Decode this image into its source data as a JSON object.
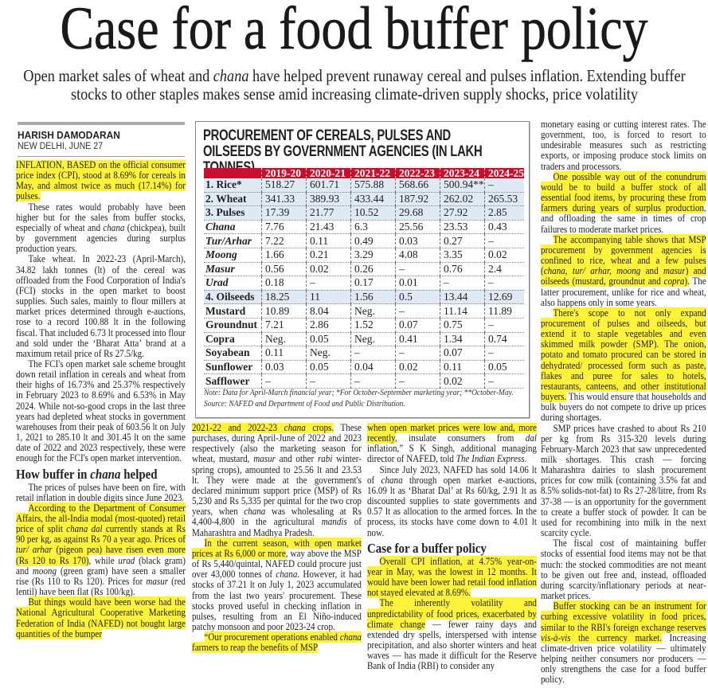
{
  "headline": "Case for a food buffer policy",
  "subhead": {
    "runs": [
      {
        "t": "Open market sales of wheat and "
      },
      {
        "t": "chana",
        "i": true
      },
      {
        "t": " have helped prevent runaway cereal and pulses inflation. Extending buffer stocks to other staples makes sense amid increasing climate-driven supply shocks, price volatility"
      }
    ]
  },
  "byline": {
    "author": "HARISH DAMODARAN",
    "dateline": "NEW DELHI, JUNE 27"
  },
  "columns": [
    [
      {
        "cont": true,
        "runs": [
          {
            "t": "INFLATION, BASED on the official consumer price index (CPI), stood at 8.69% for cereals in May, and almost twice as much (17.14%) for pulses.",
            "hl": true
          }
        ]
      },
      {
        "runs": [
          {
            "t": "These rates would probably have been higher but for the sales from buffer stocks, especially of wheat and "
          },
          {
            "t": "chana",
            "i": true
          },
          {
            "t": " (chickpea), built by government agencies during surplus production years."
          }
        ]
      },
      {
        "runs": [
          {
            "t": "Take wheat. In 2022-23 (April-March), 34.82 lakh tonnes (lt) of the cereal was offloaded from the Food Corporation of India's (FCI) stocks in the open market to boost supplies. Such sales, mainly to flour millers at market prices determined through e-auctions, rose to a record 100.88 lt in the following fiscal. That included 6.73 lt processed into flour and sold under the ‘Bharat Atta’ brand at a maximum retail price of Rs 27.5/kg."
          }
        ]
      },
      {
        "runs": [
          {
            "t": "The FCI's open market sale scheme brought down retail inflation in cereals and wheat from their highs of 16.73% and 25.37% respectively in February 2023 to 8.69% and 6.53% in May 2024. While not-so-good crops in the last three years had depleted wheat stocks in government warehouses from their peak of 603.56 lt on July 1, 2021 to 285.10 lt and 301.45 lt on the same date of 2022 and 2023 respectively, these were enough for the FCI's open market intervention."
          }
        ]
      },
      {
        "heading": true,
        "runs": [
          {
            "t": "How buffer in "
          },
          {
            "t": "chana",
            "i": true
          },
          {
            "t": " helped"
          }
        ]
      },
      {
        "runs": [
          {
            "t": "The prices of pulses have been on fire, with retail inflation in double digits since June 2023."
          }
        ]
      },
      {
        "runs": [
          {
            "t": "According to the Department of Consumer Affairs, the all-India modal (most-quoted) retail price of split ",
            "hl": true
          },
          {
            "t": "chana dal",
            "i": true,
            "hl": true
          },
          {
            "t": " currently stands at Rs 90 per kg, as against Rs 70 a year ago. Prices of ",
            "hl": true
          },
          {
            "t": "tur/ arhar",
            "i": true,
            "hl": true
          },
          {
            "t": " (pigeon pea) have risen even more (Rs 120 to Rs 170)",
            "hl": true
          },
          {
            "t": ", while "
          },
          {
            "t": "urad",
            "i": true
          },
          {
            "t": " (black gram) and "
          },
          {
            "t": "moong",
            "i": true
          },
          {
            "t": " (green gram) have seen a smaller rise (Rs 110 to Rs 120). Prices for "
          },
          {
            "t": "masur",
            "i": true
          },
          {
            "t": " (red lentil) have been flat (Rs 100/kg)."
          }
        ]
      },
      {
        "runs": [
          {
            "t": "But things would have been worse had the National Agricultural Cooperative Marketing Federation of India (NAFED) not bought large quantities of the bumper",
            "hl": true
          }
        ]
      }
    ],
    [
      {
        "cont": true,
        "runs": [
          {
            "t": "2021-22 and 2022-23 ",
            "hl": true
          },
          {
            "t": "chana",
            "i": true,
            "hl": true
          },
          {
            "t": " crops.",
            "hl": true
          },
          {
            "t": " These purchases, during April-June of 2022 and 2023 respectively (also the marketing season for wheat, mustard, "
          },
          {
            "t": "masur",
            "i": true
          },
          {
            "t": " and other "
          },
          {
            "t": "rabi",
            "i": true
          },
          {
            "t": " winter-spring crops), amounted to 25.56 lt and 23.53 lt. They were made at the government's declared minimum support price (MSP) of Rs 5,230 and Rs 5,335 per quintal for the two crop years, when "
          },
          {
            "t": "chana",
            "i": true
          },
          {
            "t": " was wholesaling at Rs 4,400-4,800 in the agricultural "
          },
          {
            "t": "mandis",
            "i": true
          },
          {
            "t": " of Maharashtra and Madhya Pradesh."
          }
        ]
      },
      {
        "runs": [
          {
            "t": "In the current season, with open market prices at Rs 6,000 or more",
            "hl": true
          },
          {
            "t": ", way above the MSP of Rs 5,440/quintal, NAFED could procure just over 43,000 tonnes of "
          },
          {
            "t": "chana",
            "i": true
          },
          {
            "t": ". However, it had stocks of 37.21 lt on July 1, 2023 accumulated from the last two years' procurement. These stocks proved useful in checking inflation in pulses, resulting from an El Niño-induced patchy monsoon and poor 2023-24 crop."
          }
        ]
      },
      {
        "runs": [
          {
            "t": "“Our procurement operations enabled ",
            "hl": true
          },
          {
            "t": "chana",
            "i": true,
            "hl": true
          },
          {
            "t": " farmers to reap the benefits of MSP",
            "hl": true
          }
        ]
      }
    ],
    [
      {
        "cont": true,
        "runs": [
          {
            "t": "when open market prices were low and, more recently",
            "hl": true
          },
          {
            "t": ", insulate consumers from "
          },
          {
            "t": "dal",
            "i": true
          },
          {
            "t": " inflation,” S K Singh, additional managing director of NAFED, told "
          },
          {
            "t": "The Indian Express",
            "i": true
          },
          {
            "t": "."
          }
        ]
      },
      {
        "runs": [
          {
            "t": "Since July 2023, NAFED has sold 14.06 lt of "
          },
          {
            "t": "chana",
            "i": true
          },
          {
            "t": " through open market e-auctions, 16.09 lt as ‘Bharat Dal’ at Rs 60/kg, 2.91 lt as discounted supplies to state governments and 0.57 lt as allocation to the armed forces. In the process, its stocks have come down to 4.01 lt now."
          }
        ]
      },
      {
        "heading": true,
        "runs": [
          {
            "t": "Case for a buffer policy"
          }
        ]
      },
      {
        "runs": [
          {
            "t": "Overall CPI inflation, at 4.75% year-on-year in May, was the lowest in 12 months. It would have been lower had retail food inflation not stayed elevated at 8.69%.",
            "hl": true
          }
        ]
      },
      {
        "runs": [
          {
            "t": "The inherently volatility and unpredictability of food prices, exacerbated by climate change",
            "hl": true
          },
          {
            "t": " — fewer rainy days and extended dry spells, interspersed with intense precipitation, and also shorter winters and heat waves — has made it difficult for the Reserve Bank of India (RBI) to consider any"
          }
        ]
      }
    ],
    [
      {
        "cont": true,
        "runs": [
          {
            "t": "monetary easing or cutting interest rates. The government, too, is forced to resort to undesirable measures such as restricting exports, or imposing produce stock limits on traders and processors."
          }
        ]
      },
      {
        "runs": [
          {
            "t": "One possible way out of the conundrum would be to build a buffer stock of all essential food items, by procuring these from farmers during years of surplus production",
            "hl": true
          },
          {
            "t": ", and offloading the same in times of crop failures to moderate market prices."
          }
        ]
      },
      {
        "runs": [
          {
            "t": "The accompanying table shows that MSP procurement by government agencies is confined to rice, wheat and a few pulses (",
            "hl": true
          },
          {
            "t": "chana, tur/ arhar, moong",
            "i": true,
            "hl": true
          },
          {
            "t": " and ",
            "hl": true
          },
          {
            "t": "masur",
            "i": true,
            "hl": true
          },
          {
            "t": ") and oilseeds (mustard, groundnut and ",
            "hl": true
          },
          {
            "t": "copra",
            "i": true,
            "hl": true
          },
          {
            "t": ").",
            "hl": true
          },
          {
            "t": " The latter procurement, unlike for rice and wheat, also happens only in some years."
          }
        ]
      },
      {
        "runs": [
          {
            "t": "There's scope to not only expand procurement of pulses and oilseeds, but extend it to staple vegetables and even skimmed milk powder (SMP). The onion, potato and tomato procured can be stored in dehydrated/ processed form such as paste, flakes and puree for sales to hotels, restaurants, canteens, and other institutional buyers.",
            "hl": true
          },
          {
            "t": " This would ensure that households and bulk buyers do not compete to drive up prices during shortages."
          }
        ]
      },
      {
        "runs": [
          {
            "t": "SMP prices have crashed to about Rs 210 per kg from Rs 315-320 levels during February-March 2023 that saw unprecedented milk shortages. This crash — forcing Maharashtra dairies to slash procurement prices for cow milk (containing 3.5% fat and 8.5% solids-not-fat) to Rs 27-28/litre, from Rs 37-38 — is an opportunity for the government to create a buffer stock of powder. It can be used for recombining into milk in the next scarcity cycle."
          }
        ]
      },
      {
        "runs": [
          {
            "t": "The fiscal cost of maintaining buffer stocks of essential food items may not be that much: the stocked commodities are not meant to be given out free and, instead, offloaded during scarcity/inflationary periods at near-market prices."
          }
        ]
      },
      {
        "runs": [
          {
            "t": "Buffer stocking can be an instrument for curbing excessive volatility in food prices, similar to the RBI's foreign exchange reserves ",
            "hl": true
          },
          {
            "t": "vis-à-vis",
            "i": true,
            "hl": true
          },
          {
            "t": " the currency market.",
            "hl": true
          },
          {
            "t": " Increasing climate-driven price volatility — ultimately helping neither consumers nor producers — only strengthens the case for a food buffer policy."
          }
        ]
      }
    ]
  ],
  "table": {
    "title": "PROCUREMENT OF CEREALS, PULSES AND OILSEEDS BY GOVERNMENT AGENCIES (IN LAKH TONNES)",
    "columns": [
      "",
      "2019-20",
      "2020-21",
      "2021-22",
      "2022-23",
      "2023-24",
      "2024-25"
    ],
    "rows": [
      {
        "label": "1. Rice*",
        "group": true,
        "values": [
          "518.27",
          "601.71",
          "575.88",
          "568.66",
          "500.94**",
          "–"
        ]
      },
      {
        "label": "2. Wheat",
        "group": true,
        "values": [
          "341.33",
          "389.93",
          "433.44",
          "187.92",
          "262.02",
          "265.53"
        ]
      },
      {
        "label": "3. Pulses",
        "group": true,
        "values": [
          "17.39",
          "21.77",
          "10.52",
          "29.68",
          "27.92",
          "2.85"
        ]
      },
      {
        "label": "Chana",
        "italic": true,
        "values": [
          "7.76",
          "21.43",
          "6.3",
          "25.56",
          "23.53",
          "0.43"
        ]
      },
      {
        "label": "Tur/Arhar",
        "italic": true,
        "values": [
          "7.22",
          "0.11",
          "0.49",
          "0.03",
          "0.27",
          "–"
        ]
      },
      {
        "label": "Moong",
        "italic": true,
        "values": [
          "1.66",
          "0.21",
          "3.29",
          "4.08",
          "3.35",
          "0.02"
        ]
      },
      {
        "label": "Masur",
        "italic": true,
        "values": [
          "0.56",
          "0.02",
          "0.26",
          "–",
          "0.76",
          "2.4"
        ]
      },
      {
        "label": "Urad",
        "italic": true,
        "values": [
          "0.18",
          "–",
          "0.17",
          "0.01",
          "–",
          "–"
        ]
      },
      {
        "label": "4. Oilseeds",
        "group": true,
        "values": [
          "18.25",
          "11",
          "1.56",
          "0.5",
          "13.44",
          "12.69"
        ]
      },
      {
        "label": "Mustard",
        "values": [
          "10.89",
          "8.04",
          "Neg.",
          "–",
          "11.14",
          "11.89"
        ]
      },
      {
        "label": "Groundnut",
        "values": [
          "7.21",
          "2.86",
          "1.52",
          "0.07",
          "0.75",
          "–"
        ]
      },
      {
        "label": "Copra",
        "values": [
          "Neg.",
          "0.05",
          "Neg.",
          "0.41",
          "1.34",
          "0.74"
        ]
      },
      {
        "label": "Soyabean",
        "values": [
          "0.11",
          "Neg.",
          "–",
          "–",
          "0.07",
          "–"
        ]
      },
      {
        "label": "Sunflower",
        "values": [
          "0.03",
          "0.05",
          "0.04",
          "0.02",
          "0.11",
          "0.05"
        ]
      },
      {
        "label": "Safflower",
        "values": [
          "–",
          "–",
          "–",
          "–",
          "0.02",
          "–"
        ]
      }
    ],
    "note": "Note: Data for April-March financial year; *For October-September marketing year; **October-May.",
    "source": "Source: NAFED and Department of Food and Public Distribution."
  },
  "colors": {
    "highlight": "#fff23a",
    "table_header": "#c8102e",
    "group_row": "#dfeaf5"
  }
}
